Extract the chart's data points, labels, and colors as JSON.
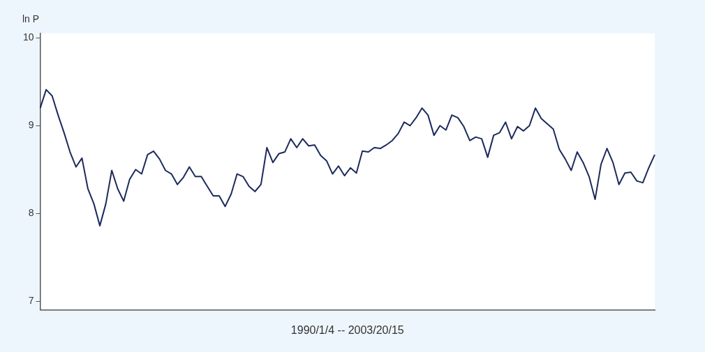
{
  "chart_data": {
    "type": "line",
    "xlabel": "1990/1/4 -- 2003/20/15",
    "ylabel": "ln P",
    "categories": [
      null,
      null,
      null,
      null,
      null,
      null,
      null,
      null,
      null,
      null,
      null,
      null,
      null,
      null,
      null,
      null,
      null,
      null,
      null,
      null,
      null,
      null,
      null,
      null,
      null,
      null,
      null,
      null,
      null,
      null,
      null,
      null,
      null,
      null,
      null,
      null,
      null,
      null,
      null,
      null,
      null,
      null,
      null,
      null,
      null,
      null,
      null,
      null,
      null,
      null,
      null,
      null,
      null,
      null,
      null,
      null,
      null,
      null,
      null,
      null,
      null,
      null,
      null,
      null,
      null,
      null,
      null,
      null,
      null,
      null,
      null,
      null,
      null,
      null,
      null,
      null,
      null,
      null,
      null,
      null,
      null,
      null,
      null,
      null,
      null,
      null,
      null,
      null,
      null,
      null,
      null,
      null,
      null,
      null,
      null,
      null,
      null,
      null,
      null,
      null,
      null,
      null,
      null,
      null
    ],
    "series": [
      {
        "color": "#1c2a5c",
        "values": [
          9.2,
          9.41,
          9.34,
          9.12,
          8.92,
          8.7,
          8.53,
          8.63,
          8.28,
          8.11,
          7.86,
          8.11,
          8.49,
          8.28,
          8.14,
          8.39,
          8.5,
          8.45,
          8.67,
          8.71,
          8.62,
          8.49,
          8.45,
          8.33,
          8.41,
          8.53,
          8.42,
          8.42,
          8.31,
          8.2,
          8.2,
          8.08,
          8.22,
          8.45,
          8.42,
          8.31,
          8.25,
          8.33,
          8.75,
          8.58,
          8.68,
          8.7,
          8.85,
          8.75,
          8.85,
          8.77,
          8.78,
          8.66,
          8.6,
          8.45,
          8.54,
          8.43,
          8.52,
          8.46,
          8.71,
          8.7,
          8.75,
          8.74,
          8.78,
          8.83,
          8.91,
          9.04,
          9.0,
          9.09,
          9.2,
          9.12,
          8.89,
          9.0,
          8.95,
          9.12,
          9.09,
          8.99,
          8.83,
          8.87,
          8.85,
          8.64,
          8.89,
          8.92,
          9.04,
          8.85,
          8.99,
          8.94,
          9.0,
          9.2,
          9.08,
          9.02,
          8.96,
          8.73,
          8.62,
          8.49,
          8.7,
          8.58,
          8.42,
          8.16,
          8.56,
          8.74,
          8.58,
          8.33,
          8.46,
          8.47,
          8.37,
          8.35,
          8.52,
          8.67
        ]
      }
    ],
    "ylim": [
      6.9,
      10.05
    ],
    "yticks": [
      7,
      8,
      9,
      10
    ],
    "tick_labels": "y",
    "grid": false,
    "legend": false,
    "marker": "none",
    "line_style": "solid"
  }
}
